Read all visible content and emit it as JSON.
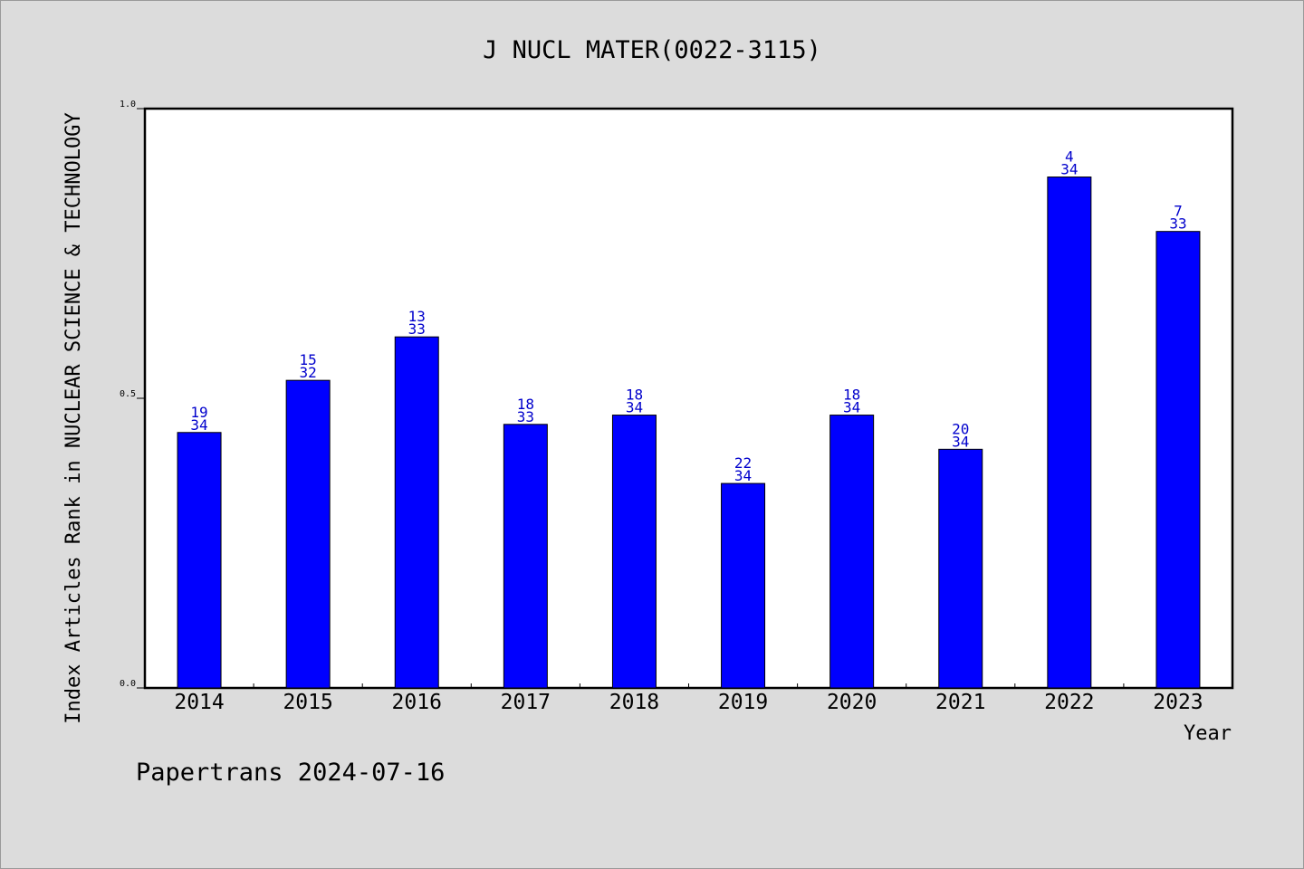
{
  "chart_data": {
    "type": "bar",
    "title": "J NUCL MATER(0022-3115)",
    "xlabel": "Year",
    "ylabel": "Index Articles Rank in NUCLEAR SCIENCE & TECHNOLOGY",
    "ylim": [
      0,
      1
    ],
    "yticks": [
      "0.0",
      "0.5",
      "1.0"
    ],
    "grid": false,
    "categories": [
      "2014",
      "2015",
      "2016",
      "2017",
      "2018",
      "2019",
      "2020",
      "2021",
      "2022",
      "2023"
    ],
    "values": [
      0.441,
      0.531,
      0.606,
      0.455,
      0.471,
      0.353,
      0.471,
      0.412,
      0.882,
      0.788
    ],
    "ranks": [
      "19",
      "15",
      "13",
      "18",
      "18",
      "22",
      "18",
      "20",
      "4",
      "7"
    ],
    "totals": [
      "34",
      "32",
      "33",
      "33",
      "34",
      "34",
      "34",
      "34",
      "34",
      "33"
    ],
    "bar_color": "#0000ff",
    "label_color": "#0000cc"
  },
  "footer": "Papertrans 2024-07-16"
}
